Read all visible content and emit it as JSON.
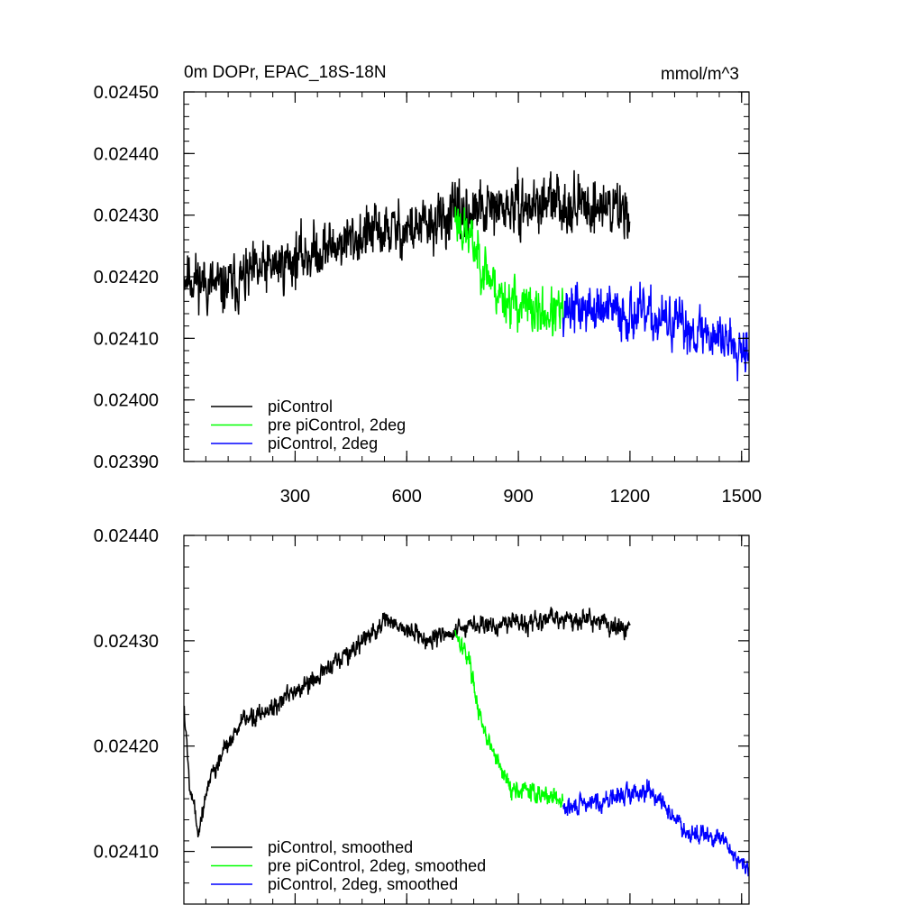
{
  "chart_data": [
    {
      "type": "line",
      "title": "0m DOPr, EPAC_18S-18N",
      "units": "mmol/m^3",
      "xlim": [
        1,
        1520
      ],
      "ylim": [
        0.0239,
        0.0245
      ],
      "xticks": [
        300,
        600,
        900,
        1200,
        1500
      ],
      "xtick_labels": [
        "300",
        "600",
        "900",
        "1200",
        "1500"
      ],
      "yticks": [
        0.0239,
        0.024,
        0.0241,
        0.0242,
        0.0243,
        0.0244,
        0.0245
      ],
      "ytick_labels": [
        "0.02390",
        "0.02400",
        "0.02410",
        "0.02420",
        "0.02430",
        "0.02440",
        "0.02450"
      ],
      "legend_position": "bottom-left",
      "series": [
        {
          "name": "piControl",
          "color": "#000000",
          "x_range": [
            1,
            1200
          ],
          "trend_x": [
            1,
            100,
            300,
            500,
            650,
            730,
            1000,
            1200
          ],
          "trend_y": [
            0.024205,
            0.02418,
            0.02423,
            0.02427,
            0.02428,
            0.0243,
            0.02432,
            0.02431
          ],
          "noise": 5.5e-05,
          "seed": 11
        },
        {
          "name": "pre piControl, 2deg",
          "color": "#00ff00",
          "x_range": [
            730,
            1020
          ],
          "trend_x": [
            730,
            780,
            850,
            950,
            1020
          ],
          "trend_y": [
            0.0243,
            0.02425,
            0.02417,
            0.02414,
            0.02414
          ],
          "noise": 5e-05,
          "seed": 23
        },
        {
          "name": "piControl, 2deg",
          "color": "#0000ff",
          "x_range": [
            1020,
            1520
          ],
          "trend_x": [
            1020,
            1200,
            1400,
            1520
          ],
          "trend_y": [
            0.02415,
            0.02414,
            0.02411,
            0.02409
          ],
          "noise": 5e-05,
          "seed": 37
        }
      ]
    },
    {
      "type": "line",
      "title": "",
      "xlim": [
        1,
        1520
      ],
      "ylim": [
        0.02405,
        0.0244
      ],
      "xticks": [
        300,
        600,
        900,
        1200,
        1500
      ],
      "xtick_labels": [
        "",
        "",
        "",
        "",
        ""
      ],
      "yticks": [
        0.0241,
        0.0242,
        0.0243,
        0.0244
      ],
      "ytick_labels": [
        "0.02410",
        "0.02420",
        "0.02430",
        "0.02440"
      ],
      "legend_position": "bottom-left",
      "series": [
        {
          "name": "piControl, smoothed",
          "color": "#000000",
          "x_range": [
            1,
            1200
          ],
          "trend_x": [
            1,
            15,
            40,
            70,
            150,
            300,
            450,
            550,
            650,
            730,
            900,
            1100,
            1200
          ],
          "trend_y": [
            0.02424,
            0.02417,
            0.02412,
            0.02417,
            0.02422,
            0.02425,
            0.02429,
            0.02432,
            0.0243,
            0.02431,
            0.02432,
            0.02432,
            0.02431
          ],
          "noise": 1.2e-05,
          "seed": 5
        },
        {
          "name": "pre piControl, 2deg, smoothed",
          "color": "#00ff00",
          "x_range": [
            730,
            1020
          ],
          "trend_x": [
            730,
            770,
            800,
            850,
            880,
            1020
          ],
          "trend_y": [
            0.02431,
            0.02428,
            0.02422,
            0.02418,
            0.02416,
            0.02415
          ],
          "noise": 1.1e-05,
          "seed": 17
        },
        {
          "name": "piControl, 2deg, smoothed",
          "color": "#0000ff",
          "x_range": [
            1020,
            1520
          ],
          "trend_x": [
            1020,
            1150,
            1250,
            1350,
            1450,
            1520
          ],
          "trend_y": [
            0.02414,
            0.02415,
            0.02416,
            0.02412,
            0.02411,
            0.02408
          ],
          "noise": 1.1e-05,
          "seed": 29
        }
      ]
    }
  ]
}
